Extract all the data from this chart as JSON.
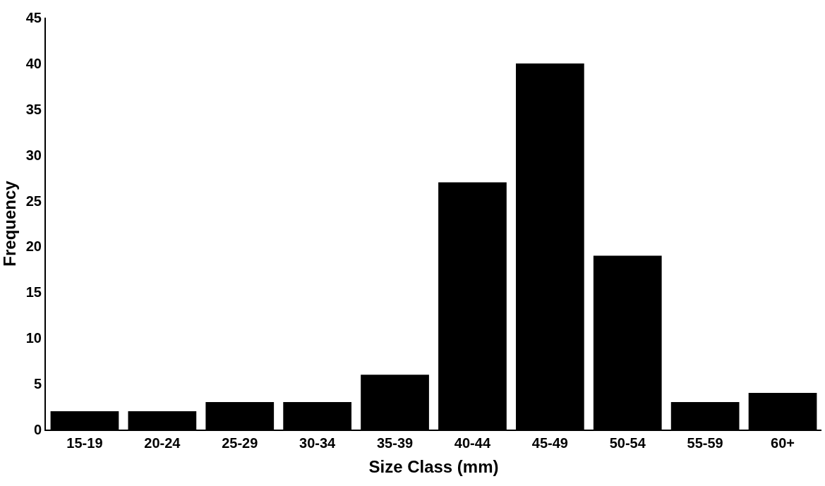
{
  "chart_data": {
    "type": "bar",
    "xlabel": "Size Class (mm)",
    "ylabel": "Frequency",
    "categories": [
      "15-19",
      "20-24",
      "25-29",
      "30-34",
      "35-39",
      "40-44",
      "45-49",
      "50-54",
      "55-59",
      "60+"
    ],
    "values": [
      2,
      2,
      3,
      3,
      6,
      27,
      40,
      19,
      3,
      4
    ],
    "color": "#000000",
    "ylim": [
      0,
      45
    ],
    "yticks": [
      0,
      5,
      10,
      15,
      20,
      25,
      30,
      35,
      40,
      45
    ]
  }
}
